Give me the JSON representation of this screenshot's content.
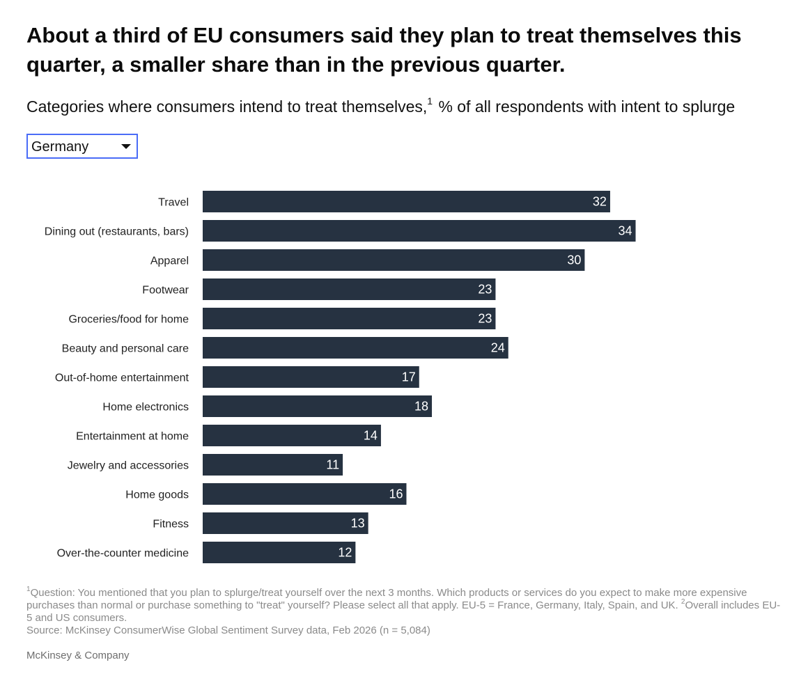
{
  "title": "About a third of EU consumers said they plan to treat themselves this quarter, a smaller share than in the previous quarter.",
  "subtitle": {
    "before": "Categories where consumers intend to treat themselves,",
    "note_mark": "1",
    "after": " % of all respondents with intent to splurge"
  },
  "dropdown": {
    "selected": "Germany",
    "icon": "caret-down-icon"
  },
  "colors": {
    "bar": "#263241",
    "bar_label": "#ffffff",
    "category_label": "#222222",
    "dropdown_border": "#4a6cf7",
    "footnote": "#8a8a8a"
  },
  "chart_data": {
    "type": "bar",
    "orientation": "horizontal",
    "categories": [
      "Travel",
      "Dining out (restaurants, bars)",
      "Apparel",
      "Footwear",
      "Groceries/food for home",
      "Beauty and personal care",
      "Out-of-home entertainment",
      "Home electronics",
      "Entertainment at home",
      "Jewelry and accessories",
      "Home goods",
      "Fitness",
      "Over-the-counter medicine"
    ],
    "values": [
      32,
      34,
      30,
      23,
      23,
      24,
      17,
      18,
      14,
      11,
      16,
      13,
      12
    ],
    "unit": "% of all respondents with intent to splurge",
    "xlim": [
      0,
      34
    ],
    "grid": false,
    "legend": "none",
    "data_labels": "inside-end"
  },
  "footnote": {
    "mark1": "1",
    "text1": "Question: You mentioned that you plan to splurge/treat yourself over the next 3 months. Which products or services do you expect to make more expensive purchases than normal or purchase something to \"treat\" yourself? Please select all that apply. EU-5 = France, Germany, Italy, Spain, and UK. ",
    "mark2": "2",
    "text2": "Overall includes EU-5 and US consumers."
  },
  "source": "Source: McKinsey ConsumerWise Global Sentiment Survey data, Feb 2026 (n = 5,084)",
  "brand": "McKinsey & Company"
}
